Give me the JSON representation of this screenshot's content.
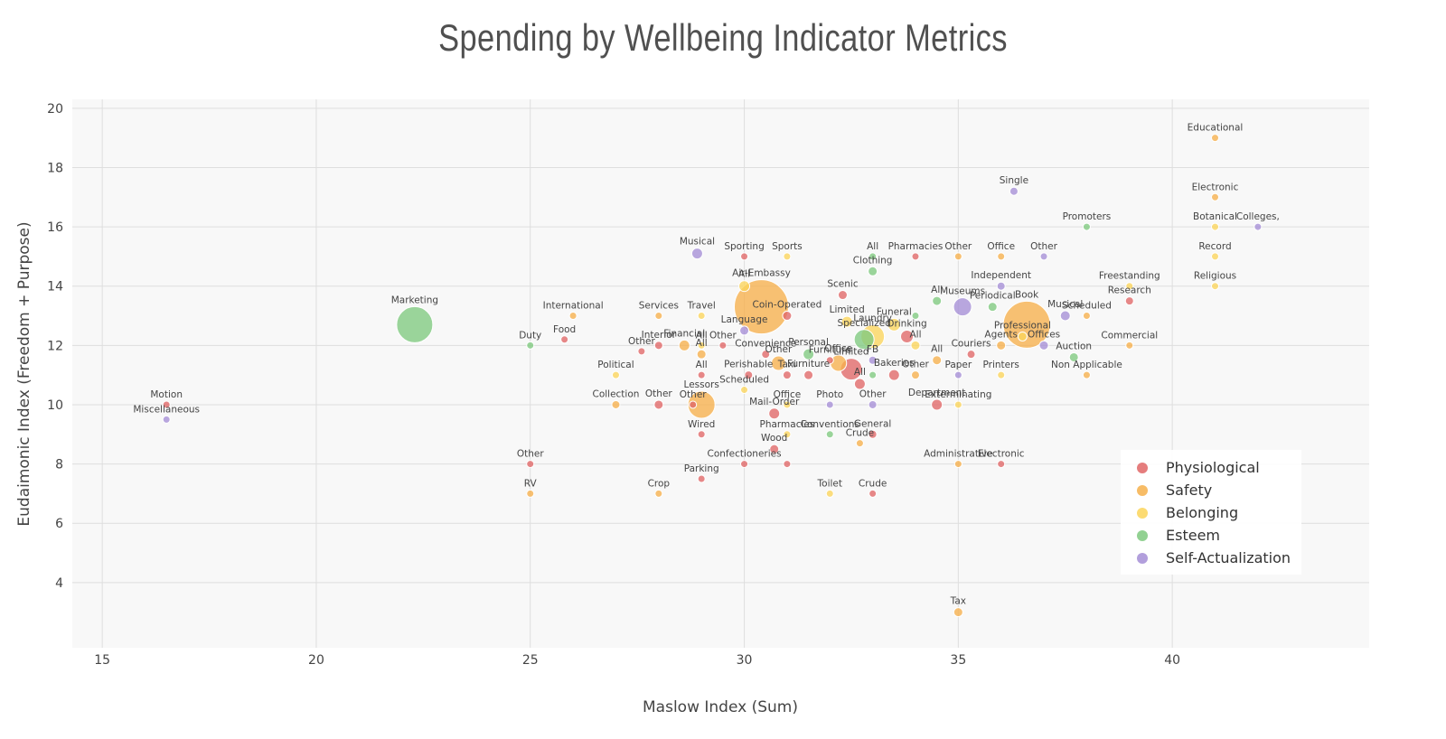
{
  "chart_data": {
    "type": "scatter",
    "title": "Spending by Wellbeing Indicator Metrics",
    "xlabel": "Maslow Index (Sum)",
    "ylabel": "Eudaimonic Index (Freedom + Purpose)",
    "xlim": [
      14.3,
      44.6
    ],
    "ylim": [
      1.8,
      20.3
    ],
    "xticks": [
      15,
      20,
      25,
      30,
      35,
      40
    ],
    "yticks": [
      4,
      6,
      8,
      10,
      12,
      14,
      16,
      18,
      20
    ],
    "grid": true,
    "legend_position": "bottom-right",
    "series": [
      {
        "name": "Physiological",
        "color": "#e06666",
        "points": [
          {
            "x": 16.5,
            "y": 10.0,
            "size": 8,
            "label": "Motion"
          },
          {
            "x": 25.0,
            "y": 8.0,
            "size": 8,
            "label": "Other"
          },
          {
            "x": 25.8,
            "y": 12.2,
            "size": 8,
            "label": "Food"
          },
          {
            "x": 27.6,
            "y": 11.8,
            "size": 8,
            "label": "Other"
          },
          {
            "x": 28.0,
            "y": 10.0,
            "size": 10,
            "label": "Other"
          },
          {
            "x": 28.0,
            "y": 12.0,
            "size": 9,
            "label": "Interior"
          },
          {
            "x": 29.0,
            "y": 11.0,
            "size": 8,
            "label": "All"
          },
          {
            "x": 29.0,
            "y": 9.0,
            "size": 8,
            "label": "Wired"
          },
          {
            "x": 29.0,
            "y": 7.5,
            "size": 8,
            "label": "Parking"
          },
          {
            "x": 29.5,
            "y": 12.0,
            "size": 8,
            "label": "Other"
          },
          {
            "x": 30.0,
            "y": 15.0,
            "size": 8,
            "label": "Sporting"
          },
          {
            "x": 30.0,
            "y": 8.0,
            "size": 8,
            "label": "Confectioneries"
          },
          {
            "x": 30.1,
            "y": 11.0,
            "size": 9,
            "label": "Perishable"
          },
          {
            "x": 30.5,
            "y": 11.7,
            "size": 9,
            "label": "Convenience"
          },
          {
            "x": 30.7,
            "y": 8.5,
            "size": 10,
            "label": "Wood"
          },
          {
            "x": 30.7,
            "y": 9.7,
            "size": 12,
            "label": "Mail-Order"
          },
          {
            "x": 31.0,
            "y": 8.0,
            "size": 8,
            "label": ""
          },
          {
            "x": 31.0,
            "y": 13.0,
            "size": 10,
            "label": "Coin-Operated"
          },
          {
            "x": 31.0,
            "y": 11.0,
            "size": 9,
            "label": "Taxi"
          },
          {
            "x": 31.5,
            "y": 11.0,
            "size": 10,
            "label": "Furniture"
          },
          {
            "x": 32.0,
            "y": 11.5,
            "size": 8,
            "label": "Furniture"
          },
          {
            "x": 32.3,
            "y": 13.7,
            "size": 10,
            "label": "Scenic"
          },
          {
            "x": 32.7,
            "y": 10.7,
            "size": 12,
            "label": "All"
          },
          {
            "x": 32.5,
            "y": 11.2,
            "size": 24,
            "label": "Limited"
          },
          {
            "x": 33.0,
            "y": 9.0,
            "size": 9,
            "label": "General"
          },
          {
            "x": 33.0,
            "y": 7.0,
            "size": 8,
            "label": "Crude"
          },
          {
            "x": 33.5,
            "y": 11.0,
            "size": 12,
            "label": "Bakeries"
          },
          {
            "x": 33.8,
            "y": 12.3,
            "size": 14,
            "label": "Drinking"
          },
          {
            "x": 34.0,
            "y": 15.0,
            "size": 8,
            "label": "Pharmacies"
          },
          {
            "x": 34.5,
            "y": 10.0,
            "size": 12,
            "label": "Department"
          },
          {
            "x": 35.3,
            "y": 11.7,
            "size": 9,
            "label": "Couriers"
          },
          {
            "x": 36.0,
            "y": 8.0,
            "size": 8,
            "label": "Electronic"
          },
          {
            "x": 39.0,
            "y": 13.5,
            "size": 9,
            "label": "Research"
          },
          {
            "x": 28.8,
            "y": 10.0,
            "size": 8,
            "label": "Other"
          }
        ]
      },
      {
        "name": "Safety",
        "color": "#f6b04b",
        "points": [
          {
            "x": 25.0,
            "y": 7.0,
            "size": 8,
            "label": "RV"
          },
          {
            "x": 26.0,
            "y": 13.0,
            "size": 8,
            "label": "International"
          },
          {
            "x": 27.0,
            "y": 10.0,
            "size": 9,
            "label": "Collection"
          },
          {
            "x": 28.0,
            "y": 7.0,
            "size": 8,
            "label": "Crop"
          },
          {
            "x": 28.0,
            "y": 13.0,
            "size": 8,
            "label": "Services"
          },
          {
            "x": 28.6,
            "y": 12.0,
            "size": 12,
            "label": "Financial"
          },
          {
            "x": 29.0,
            "y": 10.0,
            "size": 30,
            "label": "Lessors"
          },
          {
            "x": 29.0,
            "y": 11.7,
            "size": 10,
            "label": "All"
          },
          {
            "x": 30.4,
            "y": 13.3,
            "size": 60,
            "label": "Air-Embassy"
          },
          {
            "x": 30.8,
            "y": 11.4,
            "size": 16,
            "label": "Other"
          },
          {
            "x": 32.2,
            "y": 11.4,
            "size": 18,
            "label": "Office"
          },
          {
            "x": 32.7,
            "y": 8.7,
            "size": 8,
            "label": "Crude"
          },
          {
            "x": 34.0,
            "y": 11.0,
            "size": 9,
            "label": "Other"
          },
          {
            "x": 34.5,
            "y": 11.5,
            "size": 10,
            "label": "All"
          },
          {
            "x": 35.0,
            "y": 15.0,
            "size": 8,
            "label": "Other"
          },
          {
            "x": 35.0,
            "y": 8.0,
            "size": 8,
            "label": "Administrative"
          },
          {
            "x": 35.0,
            "y": 3.0,
            "size": 10,
            "label": "Tax"
          },
          {
            "x": 36.0,
            "y": 15.0,
            "size": 8,
            "label": "Office"
          },
          {
            "x": 36.0,
            "y": 12.0,
            "size": 10,
            "label": "Agents"
          },
          {
            "x": 36.6,
            "y": 12.7,
            "size": 52,
            "label": "Book"
          },
          {
            "x": 38.0,
            "y": 13.0,
            "size": 8,
            "label": "Scheduled"
          },
          {
            "x": 38.0,
            "y": 11.0,
            "size": 8,
            "label": "Non Applicable"
          },
          {
            "x": 39.0,
            "y": 12.0,
            "size": 8,
            "label": "Commercial"
          },
          {
            "x": 41.0,
            "y": 19.0,
            "size": 8,
            "label": "Educational"
          },
          {
            "x": 41.0,
            "y": 17.0,
            "size": 8,
            "label": "Electronic"
          }
        ]
      },
      {
        "name": "Belonging",
        "color": "#fbd55b",
        "points": [
          {
            "x": 27.0,
            "y": 11.0,
            "size": 8,
            "label": "Political"
          },
          {
            "x": 29.0,
            "y": 13.0,
            "size": 8,
            "label": "Travel"
          },
          {
            "x": 29.0,
            "y": 12.0,
            "size": 8,
            "label": "All"
          },
          {
            "x": 30.0,
            "y": 14.0,
            "size": 12,
            "label": "All"
          },
          {
            "x": 30.0,
            "y": 10.5,
            "size": 8,
            "label": "Scheduled"
          },
          {
            "x": 31.0,
            "y": 15.0,
            "size": 8,
            "label": "Sports"
          },
          {
            "x": 31.0,
            "y": 10.0,
            "size": 8,
            "label": "Office"
          },
          {
            "x": 31.0,
            "y": 9.0,
            "size": 8,
            "label": "Pharmacies"
          },
          {
            "x": 32.0,
            "y": 7.0,
            "size": 8,
            "label": "Toilet"
          },
          {
            "x": 32.4,
            "y": 12.8,
            "size": 12,
            "label": "Limited"
          },
          {
            "x": 33.0,
            "y": 12.3,
            "size": 26,
            "label": "Laundry"
          },
          {
            "x": 33.5,
            "y": 12.7,
            "size": 14,
            "label": "Funeral"
          },
          {
            "x": 34.0,
            "y": 12.0,
            "size": 10,
            "label": "All"
          },
          {
            "x": 35.0,
            "y": 10.0,
            "size": 8,
            "label": "Exterminating"
          },
          {
            "x": 36.0,
            "y": 11.0,
            "size": 8,
            "label": "Printers"
          },
          {
            "x": 36.5,
            "y": 12.3,
            "size": 10,
            "label": "Professional"
          },
          {
            "x": 39.0,
            "y": 14.0,
            "size": 8,
            "label": "Freestanding"
          },
          {
            "x": 41.0,
            "y": 16.0,
            "size": 8,
            "label": "Botanical"
          },
          {
            "x": 41.0,
            "y": 15.0,
            "size": 8,
            "label": "Record"
          },
          {
            "x": 41.0,
            "y": 14.0,
            "size": 8,
            "label": "Religious"
          }
        ]
      },
      {
        "name": "Esteem",
        "color": "#7fc97f",
        "points": [
          {
            "x": 22.3,
            "y": 12.7,
            "size": 40,
            "label": "Marketing"
          },
          {
            "x": 25.0,
            "y": 12.0,
            "size": 8,
            "label": "Duty"
          },
          {
            "x": 31.5,
            "y": 11.7,
            "size": 12,
            "label": "Personal"
          },
          {
            "x": 32.0,
            "y": 9.0,
            "size": 8,
            "label": "Conventions"
          },
          {
            "x": 32.8,
            "y": 12.2,
            "size": 22,
            "label": "Specialized"
          },
          {
            "x": 33.0,
            "y": 14.5,
            "size": 10,
            "label": "Clothing"
          },
          {
            "x": 33.0,
            "y": 15.0,
            "size": 8,
            "label": "All"
          },
          {
            "x": 33.0,
            "y": 11.0,
            "size": 8,
            "label": ""
          },
          {
            "x": 34.0,
            "y": 13.0,
            "size": 8,
            "label": ""
          },
          {
            "x": 34.5,
            "y": 13.5,
            "size": 10,
            "label": "All"
          },
          {
            "x": 35.8,
            "y": 13.3,
            "size": 10,
            "label": "Periodical"
          },
          {
            "x": 37.7,
            "y": 11.6,
            "size": 10,
            "label": "Auction"
          },
          {
            "x": 38.0,
            "y": 16.0,
            "size": 8,
            "label": "Promoters"
          }
        ]
      },
      {
        "name": "Self-Actualization",
        "color": "#a58ed6",
        "points": [
          {
            "x": 16.5,
            "y": 9.5,
            "size": 8,
            "label": "Miscellaneous"
          },
          {
            "x": 28.9,
            "y": 15.1,
            "size": 12,
            "label": "Musical"
          },
          {
            "x": 30.0,
            "y": 12.5,
            "size": 10,
            "label": "Language"
          },
          {
            "x": 32.0,
            "y": 10.0,
            "size": 8,
            "label": "Photo"
          },
          {
            "x": 33.0,
            "y": 10.0,
            "size": 9,
            "label": "Other"
          },
          {
            "x": 33.0,
            "y": 11.5,
            "size": 9,
            "label": "FB"
          },
          {
            "x": 35.0,
            "y": 11.0,
            "size": 8,
            "label": "Paper"
          },
          {
            "x": 35.1,
            "y": 13.3,
            "size": 20,
            "label": "Museums"
          },
          {
            "x": 36.0,
            "y": 14.0,
            "size": 9,
            "label": "Independent"
          },
          {
            "x": 36.3,
            "y": 17.2,
            "size": 9,
            "label": "Single"
          },
          {
            "x": 37.0,
            "y": 15.0,
            "size": 8,
            "label": "Other"
          },
          {
            "x": 37.0,
            "y": 12.0,
            "size": 10,
            "label": "Offices"
          },
          {
            "x": 37.5,
            "y": 13.0,
            "size": 11,
            "label": "Musical"
          },
          {
            "x": 42.0,
            "y": 16.0,
            "size": 8,
            "label": "Colleges,"
          }
        ]
      }
    ]
  }
}
